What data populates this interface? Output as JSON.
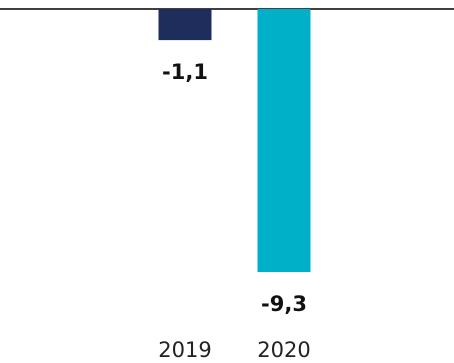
{
  "chart_data": {
    "type": "bar",
    "categories": [
      "2019",
      "2020"
    ],
    "values": [
      -1.1,
      -9.3
    ],
    "value_labels": [
      "-1,1",
      "-9,3"
    ],
    "colors": [
      "#1f2d5c",
      "#00b0c8"
    ],
    "axis_color": "#000000",
    "ylim": [
      -9.3,
      0
    ],
    "grid": false,
    "title": "",
    "xlabel": "",
    "ylabel": ""
  }
}
